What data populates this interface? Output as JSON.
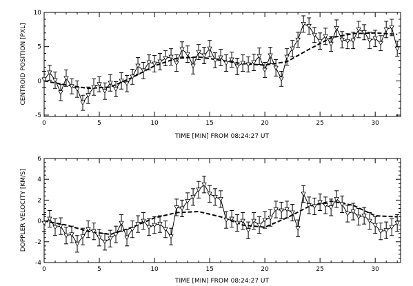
{
  "chart_data": [
    {
      "type": "line",
      "xlabel": "TIME [MIN] FROM 08:24:27 UT",
      "ylabel": "CENTROID POSITION [PXL]",
      "xlim": [
        0,
        32.3
      ],
      "ylim": [
        -5.2,
        10
      ],
      "xticks": [
        0,
        5,
        10,
        15,
        20,
        25,
        30
      ],
      "xtick_labels": [
        "0",
        "5",
        "10",
        "15",
        "20",
        "25",
        "30"
      ],
      "yticks": [
        -5,
        0,
        5,
        10
      ],
      "ytick_labels": [
        "-5",
        "0",
        "5",
        "10"
      ],
      "grid": false,
      "legend": "none",
      "series": [
        {
          "style": "solid line with open triangles and error bars",
          "x": [
            0.0,
            0.5,
            1.0,
            1.5,
            2.0,
            2.5,
            3.0,
            3.5,
            4.0,
            4.5,
            5.0,
            5.5,
            6.0,
            6.5,
            7.0,
            7.5,
            8.0,
            8.5,
            9.0,
            9.5,
            10.0,
            10.5,
            11.0,
            11.5,
            12.0,
            12.5,
            13.0,
            13.5,
            14.0,
            14.5,
            15.0,
            15.5,
            16.0,
            16.5,
            17.0,
            17.5,
            18.0,
            18.5,
            19.0,
            19.5,
            20.0,
            20.5,
            21.0,
            21.5,
            22.0,
            22.5,
            23.0,
            23.5,
            24.0,
            24.5,
            25.0,
            25.5,
            26.0,
            26.5,
            27.0,
            27.5,
            28.0,
            28.5,
            29.0,
            29.5,
            30.0,
            30.5,
            31.0,
            31.5,
            32.0
          ],
          "y": [
            0.2,
            1.2,
            0.1,
            -1.7,
            0.4,
            -0.8,
            -1.2,
            -3.2,
            -2.1,
            -0.9,
            -0.5,
            -1.5,
            -0.3,
            -1.2,
            0.0,
            -0.4,
            0.6,
            2.2,
            1.5,
            2.7,
            2.5,
            2.8,
            3.3,
            3.5,
            2.6,
            4.6,
            3.9,
            2.2,
            4.2,
            3.7,
            4.7,
            3.0,
            3.4,
            2.6,
            3.1,
            2.1,
            2.6,
            2.4,
            2.7,
            3.6,
            1.6,
            3.7,
            1.9,
            0.3,
            3.5,
            4.7,
            6.0,
            8.3,
            8.0,
            6.7,
            5.8,
            6.5,
            5.4,
            7.7,
            6.0,
            5.8,
            5.9,
            7.5,
            7.1,
            5.9,
            6.2,
            5.5,
            7.5,
            7.8,
            4.7
          ],
          "err": [
            1.2,
            1.1,
            1.2,
            1.2,
            1.2,
            1.1,
            1.2,
            1.1,
            1.2,
            1.2,
            1.1,
            1.2,
            1.2,
            1.1,
            1.2,
            1.2,
            1.1,
            1.2,
            1.2,
            1.1,
            1.2,
            1.2,
            1.1,
            1.2,
            1.2,
            1.1,
            1.2,
            1.2,
            1.1,
            1.2,
            1.2,
            1.1,
            1.2,
            1.2,
            1.1,
            1.2,
            1.2,
            1.1,
            1.2,
            1.2,
            1.1,
            1.2,
            1.2,
            1.1,
            1.2,
            1.2,
            1.1,
            1.2,
            1.2,
            1.1,
            1.2,
            1.2,
            1.1,
            1.2,
            1.2,
            1.1,
            1.2,
            1.2,
            1.1,
            1.2,
            1.2,
            1.1,
            1.2,
            1.2,
            1.1
          ]
        },
        {
          "style": "dashed trend curve",
          "x": [
            0,
            2,
            4,
            6,
            8,
            10,
            12,
            14,
            16,
            18,
            20,
            22,
            24,
            26,
            28,
            30,
            32
          ],
          "y": [
            0.0,
            -0.6,
            -1.1,
            -0.9,
            0.5,
            2.2,
            3.3,
            3.5,
            3.0,
            2.5,
            2.3,
            2.8,
            4.6,
            6.3,
            6.9,
            7.0,
            6.8
          ]
        }
      ]
    },
    {
      "type": "line",
      "xlabel": "TIME [MIN] FROM 08:24:27 UT",
      "ylabel": "DOPPLER VELOCITY [KM/S]",
      "xlim": [
        0,
        32.3
      ],
      "ylim": [
        -4,
        6
      ],
      "xticks": [
        0,
        5,
        10,
        15,
        20,
        25,
        30
      ],
      "xtick_labels": [
        "0",
        "5",
        "10",
        "15",
        "20",
        "25",
        "30"
      ],
      "yticks": [
        -4,
        -2,
        0,
        2,
        4,
        6
      ],
      "ytick_labels": [
        "-4",
        "-2",
        "0",
        "2",
        "4",
        "6"
      ],
      "grid": false,
      "legend": "none",
      "series": [
        {
          "style": "solid line with open triangles and error bars",
          "x": [
            0.0,
            0.5,
            1.0,
            1.5,
            2.0,
            2.5,
            3.0,
            3.5,
            4.0,
            4.5,
            5.0,
            5.5,
            6.0,
            6.5,
            7.0,
            7.5,
            8.0,
            8.5,
            9.0,
            9.5,
            10.0,
            10.5,
            11.0,
            11.5,
            12.0,
            12.5,
            13.0,
            13.5,
            14.0,
            14.5,
            15.0,
            15.5,
            16.0,
            16.5,
            17.0,
            17.5,
            18.0,
            18.5,
            19.0,
            19.5,
            20.0,
            20.5,
            21.0,
            21.5,
            22.0,
            22.5,
            23.0,
            23.5,
            24.0,
            24.5,
            25.0,
            25.5,
            26.0,
            26.5,
            27.0,
            27.5,
            28.0,
            28.5,
            29.0,
            29.5,
            30.0,
            30.5,
            31.0,
            31.5,
            32.0
          ],
          "y": [
            -0.2,
            0.2,
            -0.6,
            -0.5,
            -1.4,
            -1.3,
            -2.2,
            -1.5,
            -0.8,
            -1.0,
            -1.6,
            -2.0,
            -1.7,
            -1.3,
            -0.2,
            -1.6,
            -0.8,
            -0.3,
            0.0,
            -0.6,
            -0.4,
            -0.3,
            -0.8,
            -1.5,
            1.3,
            1.2,
            1.9,
            2.3,
            3.0,
            3.5,
            2.6,
            2.3,
            2.1,
            0.1,
            0.2,
            -0.2,
            0.0,
            -0.9,
            0.0,
            -0.4,
            0.1,
            0.3,
            1.1,
            1.0,
            1.1,
            0.8,
            -0.7,
            2.6,
            1.5,
            1.4,
            1.8,
            1.5,
            1.3,
            2.1,
            1.6,
            0.7,
            0.9,
            0.4,
            0.5,
            0.0,
            -0.4,
            -1.0,
            -0.9,
            -0.6,
            -0.2
          ],
          "err": [
            0.8,
            0.8,
            0.8,
            0.8,
            0.8,
            0.8,
            0.8,
            0.8,
            0.8,
            0.8,
            0.8,
            0.8,
            0.8,
            0.8,
            0.8,
            0.8,
            0.8,
            0.8,
            0.8,
            0.8,
            0.8,
            0.8,
            0.8,
            0.8,
            0.8,
            0.8,
            0.8,
            0.8,
            0.8,
            0.8,
            0.8,
            0.8,
            0.8,
            0.8,
            0.8,
            0.8,
            0.8,
            0.8,
            0.8,
            0.8,
            0.8,
            0.8,
            0.8,
            0.8,
            0.8,
            0.8,
            0.8,
            0.8,
            0.8,
            0.8,
            0.8,
            0.8,
            0.8,
            0.8,
            0.8,
            0.8,
            0.8,
            0.8,
            0.8,
            0.8,
            0.8,
            0.8,
            0.8,
            0.8,
            0.8
          ]
        },
        {
          "style": "dashed trend curve",
          "x": [
            0,
            2,
            4,
            6,
            8,
            10,
            12,
            14,
            16,
            18,
            20,
            22,
            24,
            26,
            28,
            30,
            32
          ],
          "y": [
            0.0,
            -0.4,
            -1.0,
            -1.3,
            -0.6,
            0.3,
            0.8,
            0.9,
            0.4,
            -0.4,
            -0.6,
            0.3,
            1.4,
            1.9,
            1.5,
            0.5,
            0.4
          ]
        }
      ]
    }
  ]
}
